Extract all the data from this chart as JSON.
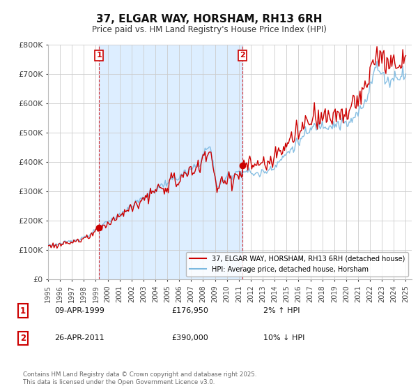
{
  "title": "37, ELGAR WAY, HORSHAM, RH13 6RH",
  "subtitle": "Price paid vs. HM Land Registry's House Price Index (HPI)",
  "ylim": [
    0,
    800000
  ],
  "yticks": [
    0,
    100000,
    200000,
    300000,
    400000,
    500000,
    600000,
    700000,
    800000
  ],
  "ytick_labels": [
    "£0",
    "£100K",
    "£200K",
    "£300K",
    "£400K",
    "£500K",
    "£600K",
    "£700K",
    "£800K"
  ],
  "hpi_color": "#7ab8e0",
  "property_color": "#cc0000",
  "shade_color": "#ddeeff",
  "marker1_year": 1999.27,
  "marker1_price": 176950,
  "marker2_year": 2011.32,
  "marker2_price": 390000,
  "annotation1_date": "09-APR-1999",
  "annotation1_price": "£176,950",
  "annotation1_hpi": "2% ↑ HPI",
  "annotation2_date": "26-APR-2011",
  "annotation2_price": "£390,000",
  "annotation2_hpi": "10% ↓ HPI",
  "legend1": "37, ELGAR WAY, HORSHAM, RH13 6RH (detached house)",
  "legend2": "HPI: Average price, detached house, Horsham",
  "footer": "Contains HM Land Registry data © Crown copyright and database right 2025.\nThis data is licensed under the Open Government Licence v3.0.",
  "background_color": "#ffffff",
  "grid_color": "#cccccc"
}
